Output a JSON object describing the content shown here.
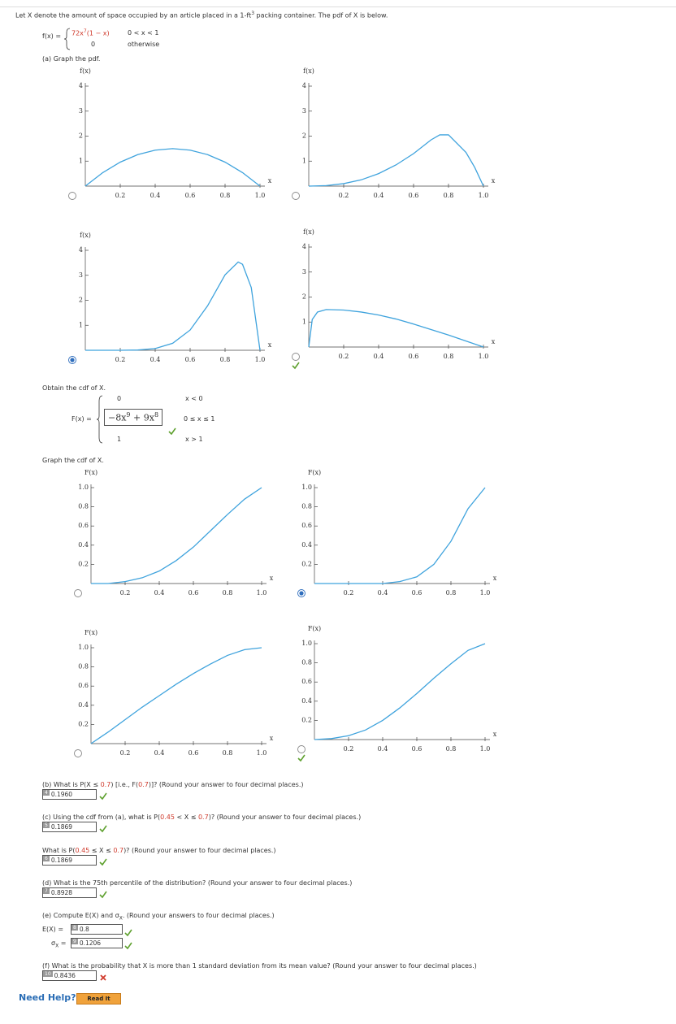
{
  "header": {
    "intro_before": "Let X denote the amount of space occupied by an article placed in a 1-ft",
    "intro_sup": "3",
    "intro_after": " packing container. The pdf of X is below."
  },
  "pdf_formula": {
    "lhs": "f(x) =",
    "expr": "72x",
    "expr_sup": "7",
    "expr_after": "(1 − x)",
    "cond": "0 < x < 1",
    "other": "0",
    "other_cond": "otherwise"
  },
  "part_a": "(a) Graph the pdf.",
  "cdf_prompt": "Obtain the cdf of X.",
  "cdf_formula": {
    "lhs": "F(x) =",
    "row1": "0",
    "row1_cond": "x < 0",
    "term1": "−8x",
    "term1_sup": "9",
    "term2": " + 9x",
    "term2_sup": "8",
    "row2_cond": "0 ≤ x ≤ 1",
    "row3": "1",
    "row3_cond": "x > 1"
  },
  "cdf_graph_prompt": "Graph the cdf of X.",
  "chart_data": [
    {
      "type": "line",
      "y_label": "f(x)",
      "x_label": "x",
      "color": "#3fa3dd",
      "selected": false,
      "correct": false,
      "x": [
        0,
        0.1,
        0.2,
        0.3,
        0.4,
        0.5,
        0.6,
        0.7,
        0.8,
        0.9,
        1
      ],
      "values": [
        0,
        0.54,
        0.96,
        1.26,
        1.44,
        1.5,
        1.44,
        1.26,
        0.96,
        0.54,
        0
      ],
      "xlim": [
        0,
        1
      ],
      "ylim": [
        0,
        4
      ],
      "xticks": [
        0.2,
        0.4,
        0.6,
        0.8,
        {
          "value": 1,
          "label": "1.0"
        }
      ],
      "yticks": [
        1,
        2,
        3,
        4
      ]
    },
    {
      "type": "line",
      "y_label": "f(x)",
      "x_label": "x",
      "color": "#3fa3dd",
      "selected": false,
      "correct": false,
      "x": [
        0,
        0.1,
        0.2,
        0.3,
        0.4,
        0.5,
        0.6,
        0.7,
        0.75,
        0.8,
        0.9,
        0.95,
        1
      ],
      "values": [
        0,
        0.02,
        0.1,
        0.25,
        0.5,
        0.85,
        1.3,
        1.85,
        2.05,
        2.05,
        1.35,
        0.75,
        0
      ],
      "xlim": [
        0,
        1
      ],
      "ylim": [
        0,
        4
      ],
      "xticks": [
        0.2,
        0.4,
        0.6,
        0.8,
        {
          "value": 1,
          "label": "1.0"
        }
      ],
      "yticks": [
        1,
        2,
        3,
        4
      ]
    },
    {
      "type": "line",
      "y_label": "f(x)",
      "x_label": "x",
      "color": "#3fa3dd",
      "selected": true,
      "correct": false,
      "x": [
        0,
        0.2,
        0.3,
        0.4,
        0.5,
        0.6,
        0.7,
        0.8,
        0.875,
        0.9,
        0.95,
        1
      ],
      "values": [
        0,
        0,
        0.01,
        0.07,
        0.28,
        0.81,
        1.78,
        3.02,
        3.53,
        3.44,
        2.51,
        0
      ],
      "xlim": [
        0,
        1
      ],
      "ylim": [
        0,
        4
      ],
      "xticks": [
        0.2,
        0.4,
        0.6,
        0.8,
        {
          "value": 1,
          "label": "1.0"
        }
      ],
      "yticks": [
        1,
        2,
        3,
        4
      ]
    },
    {
      "type": "line",
      "y_label": "f(x)",
      "x_label": "x",
      "color": "#3fa3dd",
      "selected": false,
      "correct": true,
      "x": [
        0,
        0.02,
        0.05,
        0.1,
        0.2,
        0.3,
        0.4,
        0.5,
        0.6,
        0.7,
        0.8,
        0.9,
        1
      ],
      "values": [
        0,
        1.1,
        1.4,
        1.5,
        1.48,
        1.4,
        1.28,
        1.12,
        0.92,
        0.7,
        0.48,
        0.24,
        0
      ],
      "xlim": [
        0,
        1
      ],
      "ylim": [
        0,
        4
      ],
      "xticks": [
        0.2,
        0.4,
        0.6,
        0.8,
        {
          "value": 1,
          "label": "1.0"
        }
      ],
      "yticks": [
        1,
        2,
        3,
        4
      ]
    },
    {
      "type": "line",
      "y_label": "F(x)",
      "x_label": "x",
      "color": "#3fa3dd",
      "selected": false,
      "correct": false,
      "x": [
        0,
        0.1,
        0.2,
        0.3,
        0.4,
        0.5,
        0.6,
        0.7,
        0.8,
        0.9,
        1
      ],
      "values": [
        0,
        0,
        0.02,
        0.06,
        0.13,
        0.24,
        0.38,
        0.55,
        0.72,
        0.88,
        1
      ],
      "xlim": [
        0,
        1
      ],
      "ylim": [
        0,
        1
      ],
      "xticks": [
        0.2,
        0.4,
        0.6,
        0.8,
        {
          "value": 1,
          "label": "1.0"
        }
      ],
      "yticks": [
        0.2,
        0.4,
        0.6,
        0.8,
        {
          "value": 1,
          "label": "1.0"
        }
      ]
    },
    {
      "type": "line",
      "y_label": "F(x)",
      "x_label": "x",
      "color": "#3fa3dd",
      "selected": true,
      "correct": false,
      "x": [
        0,
        0.1,
        0.2,
        0.3,
        0.4,
        0.5,
        0.6,
        0.7,
        0.8,
        0.9,
        1
      ],
      "values": [
        0,
        0,
        0,
        0,
        0,
        0.02,
        0.07,
        0.2,
        0.44,
        0.78,
        1
      ],
      "xlim": [
        0,
        1
      ],
      "ylim": [
        0,
        1
      ],
      "xticks": [
        0.2,
        0.4,
        0.6,
        0.8,
        {
          "value": 1,
          "label": "1.0"
        }
      ],
      "yticks": [
        0.2,
        0.4,
        0.6,
        0.8,
        {
          "value": 1,
          "label": "1.0"
        }
      ]
    },
    {
      "type": "line",
      "y_label": "F(x)",
      "x_label": "x",
      "color": "#3fa3dd",
      "selected": false,
      "correct": false,
      "x": [
        0,
        0.1,
        0.2,
        0.3,
        0.4,
        0.5,
        0.6,
        0.7,
        0.8,
        0.9,
        1
      ],
      "values": [
        0,
        0.12,
        0.25,
        0.38,
        0.5,
        0.62,
        0.73,
        0.83,
        0.92,
        0.98,
        1
      ],
      "xlim": [
        0,
        1
      ],
      "ylim": [
        0,
        1
      ],
      "xticks": [
        0.2,
        0.4,
        0.6,
        0.8,
        {
          "value": 1,
          "label": "1.0"
        }
      ],
      "yticks": [
        0.2,
        0.4,
        0.6,
        0.8,
        {
          "value": 1,
          "label": "1.0"
        }
      ]
    },
    {
      "type": "line",
      "y_label": "F(x)",
      "x_label": "x",
      "color": "#3fa3dd",
      "selected": false,
      "correct": true,
      "x": [
        0,
        0.1,
        0.2,
        0.3,
        0.4,
        0.5,
        0.6,
        0.7,
        0.8,
        0.9,
        1
      ],
      "values": [
        0,
        0.01,
        0.04,
        0.1,
        0.2,
        0.33,
        0.48,
        0.64,
        0.79,
        0.93,
        1
      ],
      "xlim": [
        0,
        1
      ],
      "ylim": [
        0,
        1
      ],
      "xticks": [
        0.2,
        0.4,
        0.6,
        0.8,
        {
          "value": 1,
          "label": "1.0"
        }
      ],
      "yticks": [
        0.2,
        0.4,
        0.6,
        0.8,
        {
          "value": 1,
          "label": "1.0"
        }
      ]
    }
  ],
  "questions": [
    {
      "segments": [
        "(b) What is P(X ≤ ",
        "0.7",
        ") [i.e., F(",
        "0.7",
        ")]? (Round your answer to four decimal places.)"
      ],
      "badge": "4",
      "answer": "0.1960",
      "correct": true
    },
    {
      "segments": [
        "(c) Using the cdf from (a), what is P(",
        "0.45",
        " < X ≤ ",
        "0.7",
        ")? (Round your answer to four decimal places.)"
      ],
      "badge": "5",
      "answer": "0.1869",
      "correct": true
    },
    {
      "segments": [
        "What is P(",
        "0.45",
        " ≤ X ≤ ",
        "0.7",
        ")? (Round your answer to four decimal places.)"
      ],
      "badge": "6",
      "answer": "0.1869",
      "correct": true
    },
    {
      "segments": [
        "(d) What is the 75th percentile of the distribution? (Round your answer to four decimal places.)"
      ],
      "badge": "7",
      "answer": "0.8928",
      "correct": true
    },
    {
      "segments": [
        "(f) What is the probability that X is more than 1 standard deviation from its mean value? (Round your answer to four decimal places.)"
      ],
      "badge": "10",
      "answer": "0.8436",
      "correct": false
    }
  ],
  "expectation": {
    "prompt_before": "(e) Compute E(X) and σ",
    "prompt_sub": "X",
    "prompt_after": ". (Round your answers to four decimal places.)",
    "mean_label": "E(X) =",
    "mean_badge": "8",
    "mean_answer": "0.8",
    "sd_label": "σ",
    "sd_sub": "X",
    "sd_eq": " =",
    "sd_badge": "9",
    "sd_answer": "0.1206"
  },
  "help": {
    "label": "Need Help?",
    "button": "Read It"
  }
}
